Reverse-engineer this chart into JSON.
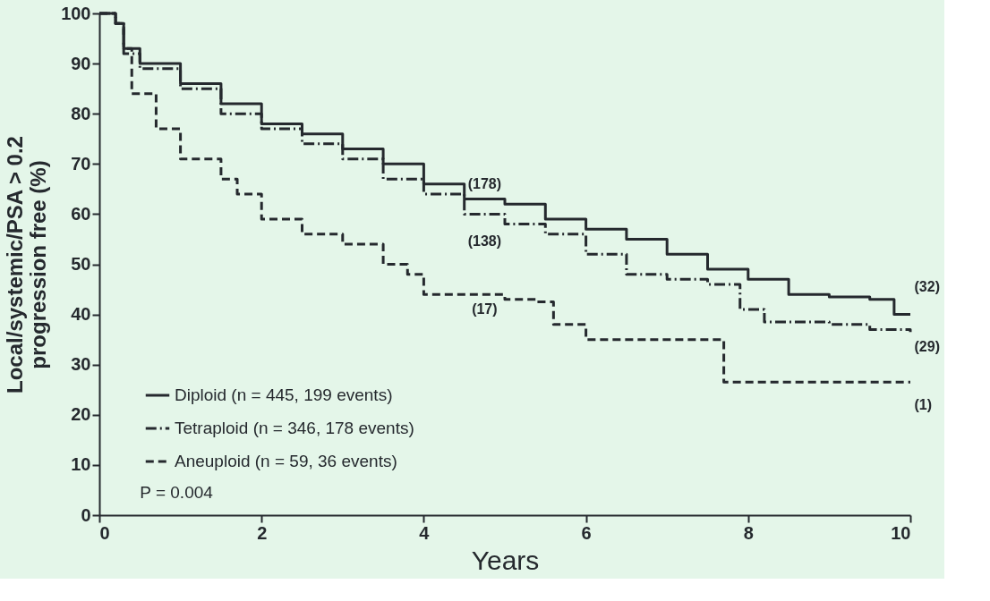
{
  "chart_data": {
    "type": "step",
    "xlabel": "Years",
    "ylabel": "Local/systemic/PSA > 0.2\nprogression free (%)",
    "xlim": [
      0,
      10
    ],
    "ylim": [
      0,
      100
    ],
    "xticks": [
      0,
      2,
      4,
      6,
      8,
      10
    ],
    "yticks": [
      0,
      10,
      20,
      30,
      40,
      50,
      60,
      70,
      80,
      90,
      100
    ],
    "grid": false,
    "legend": "bottom left",
    "marker": "none",
    "series": [
      {
        "name": "Diploid (n = 445, 199 events)",
        "color": "#25292e",
        "line_style": "solid",
        "x": [
          0,
          0.2,
          0.3,
          0.5,
          1,
          1.5,
          2,
          2.5,
          3,
          3.5,
          4,
          4.5,
          5,
          5.5,
          6,
          6.5,
          7,
          7.5,
          8,
          8.5,
          9,
          9.5,
          9.8,
          10
        ],
        "values": [
          100,
          98,
          93,
          90,
          86,
          82,
          78,
          76,
          73,
          70,
          66,
          63,
          62,
          59,
          57,
          55,
          52,
          49,
          47,
          44,
          43.5,
          43,
          40,
          40
        ]
      },
      {
        "name": "Tetraploid (n = 346, 178 events)",
        "color": "#25292e",
        "line_style": "dashdot",
        "x": [
          0,
          0.2,
          0.3,
          0.5,
          1,
          1.5,
          2,
          2.5,
          3,
          3.5,
          4,
          4.5,
          5,
          5.5,
          6,
          6.5,
          7,
          7.5,
          7.9,
          8.2,
          9,
          9.5,
          10
        ],
        "values": [
          100,
          98,
          92,
          89,
          85,
          80,
          77,
          74,
          71,
          67,
          64,
          60,
          58,
          56,
          52,
          48,
          47,
          46,
          41,
          38.5,
          38,
          37,
          36.5
        ]
      },
      {
        "name": "Aneuploid (n = 59, 36 events)",
        "color": "#25292e",
        "line_style": "dashed",
        "x": [
          0,
          0.2,
          0.3,
          0.4,
          0.7,
          1,
          1.5,
          1.7,
          2,
          2.5,
          3,
          3.5,
          3.8,
          4,
          5,
          5.4,
          5.6,
          6,
          7.7,
          10
        ],
        "values": [
          100,
          98,
          93,
          84,
          77,
          71,
          67,
          64,
          59,
          56,
          54,
          50,
          48,
          44,
          43,
          42.5,
          38,
          35,
          26.5,
          26.5
        ]
      }
    ],
    "annotations": [
      "(178)",
      "(138)",
      "(17)",
      "(32)",
      "(29)",
      "(1)",
      "P = 0.004"
    ]
  }
}
